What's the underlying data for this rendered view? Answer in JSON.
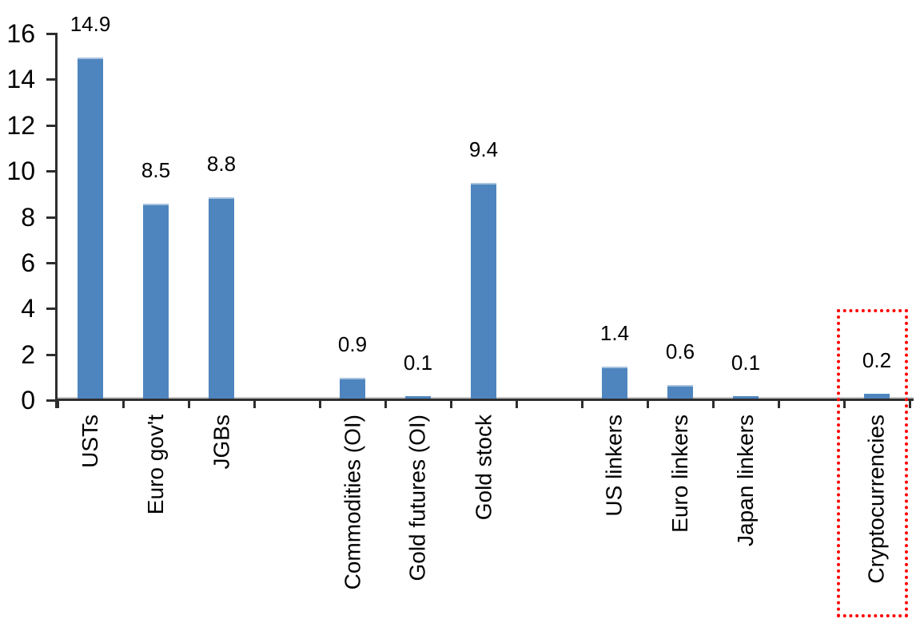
{
  "chart_data": {
    "type": "bar",
    "title": "",
    "xlabel": "",
    "ylabel": "",
    "categories": [
      "USTs",
      "Euro gov't",
      "JGBs",
      "Commodities (OI)",
      "Gold futures (OI)",
      "Gold stock",
      "US linkers",
      "Euro linkers",
      "Japan linkers",
      "Cryptocurrencies"
    ],
    "values": [
      14.9,
      8.5,
      8.8,
      0.9,
      0.1,
      9.4,
      1.4,
      0.6,
      0.1,
      0.2
    ],
    "value_labels": [
      "14.9",
      "8.5",
      "8.8",
      "0.9",
      "0.1",
      "9.4",
      "1.4",
      "0.6",
      "0.1",
      "0.2"
    ],
    "ylim": [
      0,
      16
    ],
    "ytick_labels": [
      "0",
      "2",
      "4",
      "6",
      "8",
      "10",
      "12",
      "14",
      "16"
    ],
    "grid": false,
    "legend": false,
    "layout_hints": {
      "slot_indices": [
        0,
        1,
        2,
        4,
        5,
        6,
        8,
        9,
        10,
        12
      ],
      "total_slots": 13,
      "empty_separator_slots": [
        3,
        7,
        11
      ],
      "bar_orientation": "vertical",
      "category_label_rotation_deg": -90
    },
    "colors": {
      "bar": "#4E85BE",
      "bar_top_edge": "#A9C3DF",
      "axis": "#2E2E2E",
      "text": "#000000",
      "highlight_box": "#FF0000"
    },
    "highlight": {
      "category": "Cryptocurrencies",
      "value_label": "0.2",
      "style": "red dotted rectangle around bar, value label and category label"
    }
  }
}
